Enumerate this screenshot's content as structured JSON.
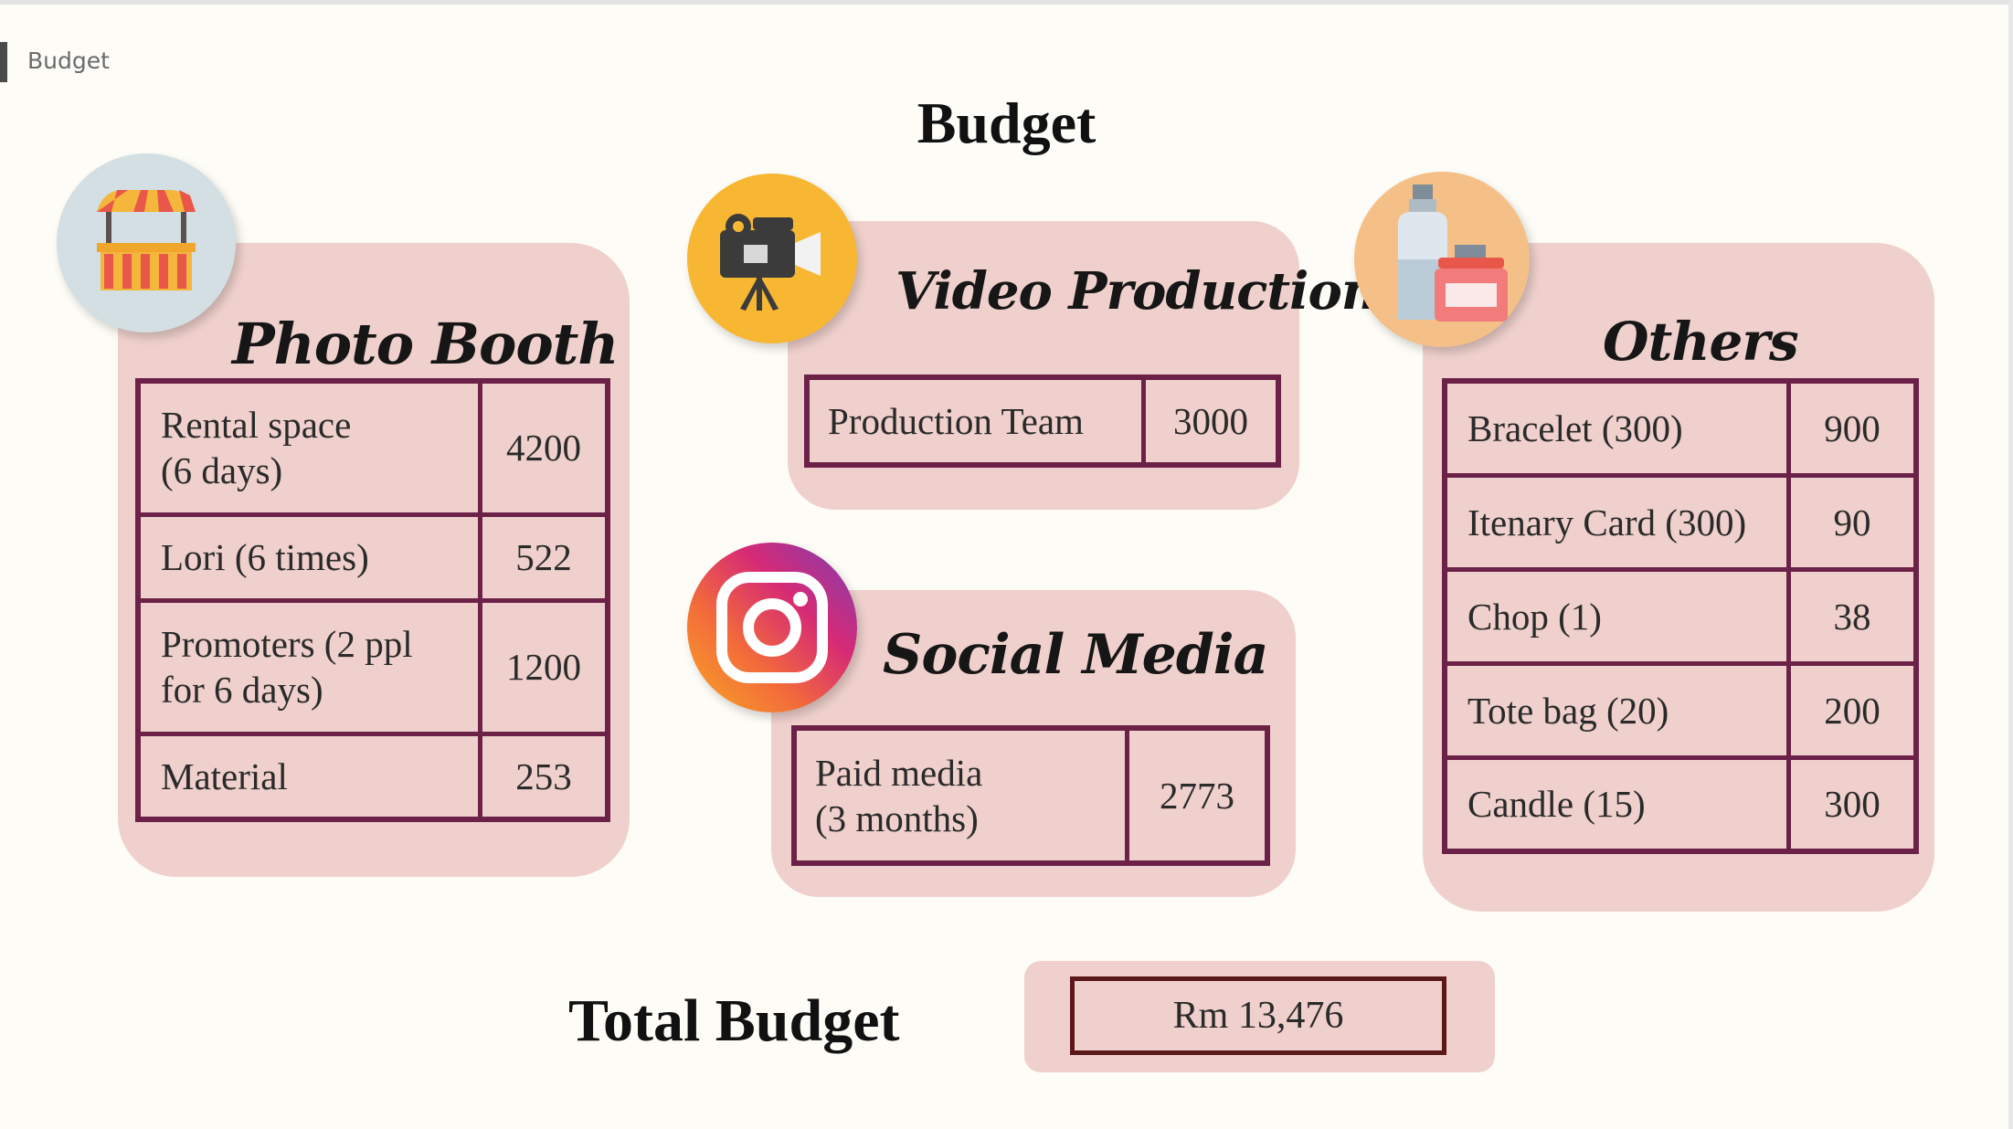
{
  "slide_label": "Budget",
  "title": "Budget",
  "sections": {
    "photo_booth": {
      "title": "Photo Booth",
      "icon": "market-stall-icon",
      "rows": [
        {
          "item_line1": "Rental space",
          "item_line2": "(6 days)",
          "amount": "4200"
        },
        {
          "item_line1": "Lori (6 times)",
          "amount": "522"
        },
        {
          "item_line1": "Promoters (2 ppl",
          "item_line2": "for 6 days)",
          "amount": "1200"
        },
        {
          "item_line1": "Material",
          "amount": "253"
        }
      ]
    },
    "video_production": {
      "title": "Video Production",
      "icon": "video-camera-icon",
      "rows": [
        {
          "item": "Production Team",
          "amount": "3000"
        }
      ]
    },
    "social_media": {
      "title": "Social Media",
      "icon": "instagram-icon",
      "rows": [
        {
          "item_line1": "Paid media",
          "item_line2": "(3 months)",
          "amount": "2773"
        }
      ]
    },
    "others": {
      "title": "Others",
      "icon": "perfume-bottles-icon",
      "rows": [
        {
          "item": "Bracelet (300)",
          "amount": "900"
        },
        {
          "item": "Itenary Card (300)",
          "amount": "90"
        },
        {
          "item": "Chop (1)",
          "amount": "38"
        },
        {
          "item": "Tote bag (20)",
          "amount": "200"
        },
        {
          "item": "Candle (15)",
          "amount": "300"
        }
      ]
    }
  },
  "total": {
    "label": "Total Budget",
    "value": "Rm 13,476"
  },
  "colors": {
    "panel": "#efd0cc",
    "table_border": "#6b2148",
    "total_border": "#5a1818",
    "background": "#fdfcf7"
  }
}
